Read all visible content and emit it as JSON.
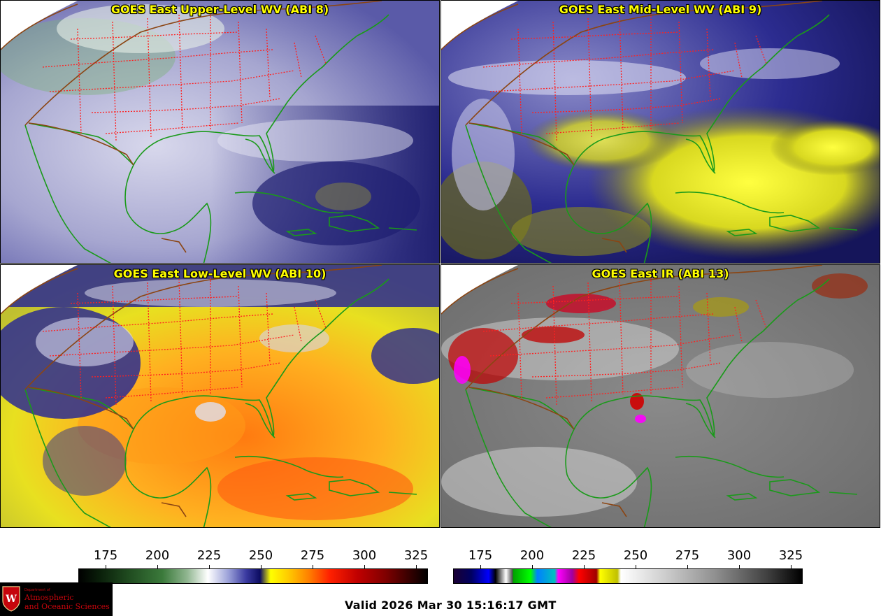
{
  "panels": [
    {
      "title": "GOES East Upper-Level WV (ABI 8)"
    },
    {
      "title": "GOES East Mid-Level WV (ABI 9)"
    },
    {
      "title": "GOES East Low-Level WV (ABI 10)"
    },
    {
      "title": "GOES East IR (ABI 13)"
    }
  ],
  "colorbar_left": {
    "ticks": [
      "175",
      "200",
      "225",
      "250",
      "275",
      "300",
      "325"
    ]
  },
  "colorbar_right": {
    "ticks": [
      "175",
      "200",
      "225",
      "250",
      "275",
      "300",
      "325"
    ]
  },
  "valid_time": "Valid 2026 Mar 30 15:16:17 GMT",
  "logo": {
    "department": "Department of",
    "line1": "Atmospheric",
    "line2": "and Oceanic Sciences"
  },
  "colors": {
    "title": "#ffff00",
    "coastline": "#1a9a1a",
    "state_border": "#ff2020",
    "country_border": "#8b4513"
  }
}
